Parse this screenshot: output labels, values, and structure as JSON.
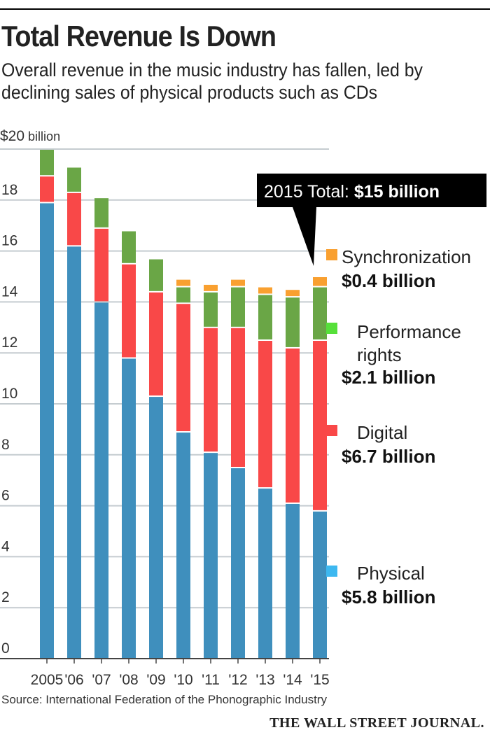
{
  "header": {
    "title": "Total Revenue Is Down",
    "subtitle": "Overall revenue in the music industry has fallen, led by declining sales of physical products such as CDs"
  },
  "chart_data": {
    "type": "bar",
    "stacked": true,
    "title": "Total Revenue Is Down",
    "ylabel": "$20 billion",
    "ylim": [
      0,
      20
    ],
    "yticks": [
      0,
      2,
      4,
      6,
      8,
      10,
      12,
      14,
      16,
      18
    ],
    "top_tick_label": "$20",
    "top_tick_unit": "billion",
    "categories": [
      "2005",
      "'06",
      "'07",
      "'08",
      "'09",
      "'10",
      "'11",
      "'12",
      "'13",
      "'14",
      "'15"
    ],
    "series": [
      {
        "name": "Physical",
        "color": "#3f8fbd",
        "legend_color": "#3db8f0",
        "values": [
          17.9,
          16.2,
          14.0,
          11.8,
          10.3,
          8.9,
          8.1,
          7.5,
          6.7,
          6.1,
          5.8
        ]
      },
      {
        "name": "Digital",
        "color": "#f94848",
        "legend_color": "#f94848",
        "values": [
          1.05,
          2.1,
          2.9,
          3.7,
          4.1,
          5.05,
          4.9,
          5.5,
          5.8,
          6.1,
          6.7
        ]
      },
      {
        "name": "Performance rights",
        "color": "#6aa646",
        "legend_color": "#56e03a",
        "values": [
          1.05,
          1.0,
          1.2,
          1.3,
          1.3,
          0.65,
          1.4,
          1.6,
          1.8,
          2.0,
          2.1
        ]
      },
      {
        "name": "Synchronization",
        "color": "#f9a030",
        "legend_color": "#f9a030",
        "values": [
          0,
          0,
          0,
          0,
          0,
          0.3,
          0.3,
          0.3,
          0.3,
          0.3,
          0.4
        ]
      }
    ],
    "legend": [
      {
        "label": "Synchronization",
        "value": "$0.4 billion"
      },
      {
        "label": "Performance rights",
        "value": "$2.1 billion"
      },
      {
        "label": "Digital",
        "value": "$6.7 billion"
      },
      {
        "label": "Physical",
        "value": "$5.8 billion"
      }
    ],
    "annotation": {
      "prefix": "2015 Total:",
      "value": "$15 billion"
    },
    "legend_position": "right"
  },
  "footer": {
    "source": "Source: International Federation of the Phonographic Industry",
    "brand": "THE WALL STREET JOURNAL."
  }
}
